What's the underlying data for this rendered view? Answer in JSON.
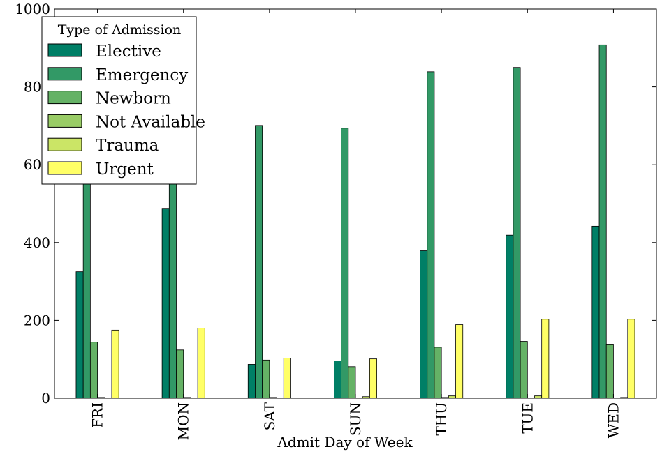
{
  "chart_data": {
    "type": "bar",
    "title": "",
    "xlabel": "Admit Day of Week",
    "ylabel": "",
    "ylim": [
      0,
      1000
    ],
    "yticks": [
      0,
      200,
      400,
      600,
      800,
      1000
    ],
    "grid": false,
    "legend": {
      "title": "Type of Admission",
      "placement": "top-left"
    },
    "categories": [
      "FRI",
      "MON",
      "SAT",
      "SUN",
      "THU",
      "TUE",
      "WED"
    ],
    "series": [
      {
        "name": "Elective",
        "color": "#007f66",
        "values": [
          325,
          488,
          87,
          96,
          379,
          419,
          442
        ]
      },
      {
        "name": "Emergency",
        "color": "#329966",
        "values": [
          600,
          600,
          701,
          694,
          839,
          850,
          908
        ]
      },
      {
        "name": "Newborn",
        "color": "#65b266",
        "values": [
          144,
          124,
          98,
          81,
          131,
          146,
          139
        ]
      },
      {
        "name": "Not Available",
        "color": "#99cc66",
        "values": [
          2,
          2,
          2,
          0,
          2,
          0,
          0
        ]
      },
      {
        "name": "Trauma",
        "color": "#cbe566",
        "values": [
          0,
          0,
          0,
          4,
          6,
          6,
          2
        ]
      },
      {
        "name": "Urgent",
        "color": "#ffff66",
        "values": [
          175,
          180,
          103,
          101,
          189,
          203,
          203
        ]
      }
    ]
  }
}
